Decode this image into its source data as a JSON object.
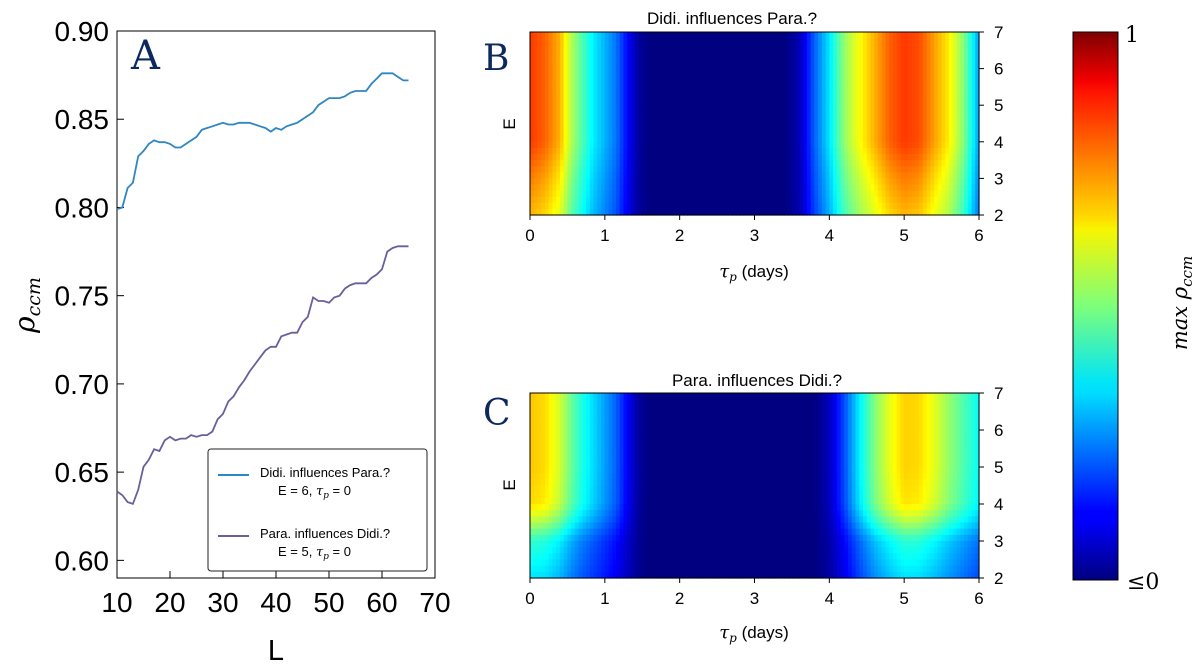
{
  "chart_data": [
    {
      "panel": "A",
      "type": "line",
      "title": "",
      "xlabel": "L",
      "ylabel": "ρ_ccm",
      "xlim": [
        10,
        70
      ],
      "ylim": [
        0.59,
        0.9
      ],
      "xticks": [
        10,
        20,
        30,
        40,
        50,
        60,
        70
      ],
      "yticks": [
        0.6,
        0.65,
        0.7,
        0.75,
        0.8,
        0.85,
        0.9
      ],
      "ytick_labels": [
        "0.60",
        "0.65",
        "0.70",
        "0.75",
        "0.80",
        "0.85",
        "0.90"
      ],
      "grid": false,
      "legend_position": "bottom-right",
      "x": [
        10,
        11,
        12,
        13,
        14,
        15,
        16,
        17,
        18,
        19,
        20,
        21,
        22,
        23,
        24,
        25,
        26,
        27,
        28,
        29,
        30,
        31,
        32,
        33,
        34,
        35,
        36,
        37,
        38,
        39,
        40,
        41,
        42,
        43,
        44,
        45,
        46,
        47,
        48,
        49,
        50,
        51,
        52,
        53,
        54,
        55,
        56,
        57,
        58,
        59,
        60,
        61,
        62,
        63,
        64,
        65
      ],
      "series": [
        {
          "name": "Didi. influences Para.?",
          "name_line2_prefix": "E = 6, ",
          "name_line2_suffix": " = 0",
          "color": "#2f86c4",
          "values": [
            0.799,
            0.8,
            0.811,
            0.814,
            0.829,
            0.832,
            0.836,
            0.838,
            0.837,
            0.837,
            0.836,
            0.834,
            0.834,
            0.836,
            0.838,
            0.84,
            0.844,
            0.845,
            0.846,
            0.847,
            0.848,
            0.847,
            0.847,
            0.848,
            0.848,
            0.848,
            0.847,
            0.846,
            0.845,
            0.843,
            0.845,
            0.844,
            0.846,
            0.847,
            0.848,
            0.85,
            0.852,
            0.854,
            0.858,
            0.86,
            0.862,
            0.862,
            0.862,
            0.863,
            0.865,
            0.866,
            0.866,
            0.866,
            0.87,
            0.873,
            0.876,
            0.876,
            0.876,
            0.874,
            0.872,
            0.872
          ]
        },
        {
          "name": "Para. influences Didi.?",
          "name_line2_prefix": "E = 5, ",
          "name_line2_suffix": " = 0",
          "color": "#6b5e9b",
          "values": [
            0.639,
            0.637,
            0.633,
            0.632,
            0.64,
            0.653,
            0.657,
            0.663,
            0.662,
            0.668,
            0.67,
            0.668,
            0.669,
            0.669,
            0.671,
            0.67,
            0.671,
            0.671,
            0.673,
            0.68,
            0.683,
            0.69,
            0.693,
            0.698,
            0.702,
            0.707,
            0.711,
            0.715,
            0.719,
            0.721,
            0.721,
            0.727,
            0.728,
            0.729,
            0.729,
            0.735,
            0.738,
            0.749,
            0.747,
            0.747,
            0.746,
            0.749,
            0.75,
            0.754,
            0.756,
            0.757,
            0.757,
            0.757,
            0.76,
            0.762,
            0.765,
            0.775,
            0.777,
            0.778,
            0.778,
            0.778
          ]
        }
      ]
    },
    {
      "panel": "B",
      "type": "heatmap",
      "title": "Didi. influences Para.?",
      "xlabel_suffix": " (days)",
      "ylabel": "E",
      "xlim": [
        0,
        6
      ],
      "ylim": [
        2,
        7
      ],
      "xticks": [
        0,
        1,
        2,
        3,
        4,
        5,
        6
      ],
      "yticks": [
        2,
        3,
        4,
        5,
        6,
        7
      ],
      "colormap": "jet",
      "x_profile": [
        [
          0.0,
          0.82
        ],
        [
          0.2,
          0.78
        ],
        [
          0.4,
          0.7
        ],
        [
          0.55,
          0.55
        ],
        [
          0.7,
          0.45
        ],
        [
          0.85,
          0.36
        ],
        [
          1.0,
          0.3
        ],
        [
          1.15,
          0.24
        ],
        [
          1.3,
          0.13
        ],
        [
          1.45,
          0.03
        ],
        [
          1.6,
          0.0
        ],
        [
          3.4,
          0.0
        ],
        [
          3.6,
          0.05
        ],
        [
          3.8,
          0.22
        ],
        [
          4.0,
          0.35
        ],
        [
          4.2,
          0.52
        ],
        [
          4.4,
          0.62
        ],
        [
          4.6,
          0.7
        ],
        [
          4.8,
          0.78
        ],
        [
          5.0,
          0.82
        ],
        [
          5.2,
          0.8
        ],
        [
          5.4,
          0.72
        ],
        [
          5.6,
          0.64
        ],
        [
          5.8,
          0.5
        ],
        [
          6.0,
          0.28
        ]
      ],
      "e_profile": [
        [
          2,
          0.85
        ],
        [
          3,
          0.92
        ],
        [
          4,
          1.0
        ],
        [
          5,
          1.0
        ],
        [
          6,
          1.0
        ],
        [
          7,
          1.0
        ]
      ]
    },
    {
      "panel": "C",
      "type": "heatmap",
      "title": "Para. influences Didi.?",
      "xlabel_suffix": " (days)",
      "ylabel": "E",
      "xlim": [
        0,
        6
      ],
      "ylim": [
        2,
        7
      ],
      "xticks": [
        0,
        1,
        2,
        3,
        4,
        5,
        6
      ],
      "yticks": [
        2,
        3,
        4,
        5,
        6,
        7
      ],
      "colormap": "jet",
      "x_profile": [
        [
          0.0,
          0.68
        ],
        [
          0.2,
          0.66
        ],
        [
          0.4,
          0.58
        ],
        [
          0.55,
          0.48
        ],
        [
          0.7,
          0.4
        ],
        [
          0.85,
          0.34
        ],
        [
          1.0,
          0.28
        ],
        [
          1.15,
          0.22
        ],
        [
          1.3,
          0.12
        ],
        [
          1.45,
          0.03
        ],
        [
          1.6,
          0.0
        ],
        [
          3.8,
          0.0
        ],
        [
          4.0,
          0.06
        ],
        [
          4.2,
          0.2
        ],
        [
          4.4,
          0.36
        ],
        [
          4.6,
          0.5
        ],
        [
          4.8,
          0.6
        ],
        [
          5.0,
          0.67
        ],
        [
          5.2,
          0.66
        ],
        [
          5.4,
          0.6
        ],
        [
          5.6,
          0.52
        ],
        [
          5.8,
          0.45
        ],
        [
          6.0,
          0.38
        ]
      ],
      "e_profile": [
        [
          2,
          0.52
        ],
        [
          3,
          0.62
        ],
        [
          3.6,
          0.85
        ],
        [
          4,
          0.97
        ],
        [
          5,
          1.0
        ],
        [
          6,
          1.0
        ],
        [
          7,
          1.0
        ]
      ]
    },
    {
      "panel": "colorbar",
      "type": "colorbar",
      "colormap": "jet",
      "label": "max ρ_ccm",
      "min_label": "≤0",
      "max_label": "1"
    }
  ],
  "panel_letters": [
    "A",
    "B",
    "C"
  ]
}
